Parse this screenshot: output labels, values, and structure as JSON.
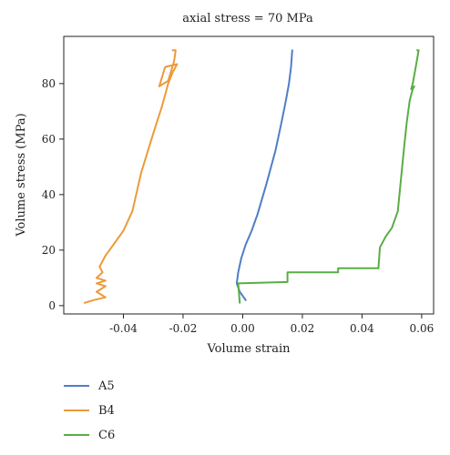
{
  "chart_data": {
    "type": "line",
    "title": "axial stress = 70 MPa",
    "xlabel": "Volume strain",
    "ylabel": "Volume stress (MPa)",
    "xlim": [
      -0.06,
      0.064
    ],
    "ylim": [
      -3,
      97
    ],
    "xticks": [
      -0.04,
      -0.02,
      0.0,
      0.02,
      0.04,
      0.06
    ],
    "xtick_labels": [
      "-0.04",
      "-0.02",
      "0.00",
      "0.02",
      "0.04",
      "0.06"
    ],
    "yticks": [
      0,
      20,
      40,
      60,
      80
    ],
    "ytick_labels": [
      "0",
      "20",
      "40",
      "60",
      "80"
    ],
    "grid": false,
    "legend_position": "below",
    "series": [
      {
        "name": "A5",
        "color": "#4f7ec6",
        "x": [
          0.001,
          -0.001,
          -0.002,
          -0.0015,
          -0.0005,
          0.001,
          0.003,
          0.005,
          0.008,
          0.011,
          0.013,
          0.0145,
          0.0155,
          0.0162,
          0.0166
        ],
        "y": [
          2,
          5,
          8,
          12,
          17,
          22,
          27,
          33,
          44,
          56,
          66,
          74,
          80,
          86,
          92
        ]
      },
      {
        "name": "B4",
        "color": "#ec9a3a",
        "x": [
          -0.053,
          -0.05,
          -0.046,
          -0.049,
          -0.046,
          -0.049,
          -0.046,
          -0.049,
          -0.047,
          -0.048,
          -0.046,
          -0.044,
          -0.04,
          -0.037,
          -0.034,
          -0.03,
          -0.027,
          -0.025,
          -0.0235,
          -0.022,
          -0.026,
          -0.028,
          -0.025,
          -0.023,
          -0.0225,
          -0.0235
        ],
        "y": [
          1,
          2,
          3,
          5,
          7,
          8,
          9,
          10,
          12,
          14,
          18,
          21,
          27,
          34,
          48,
          62,
          72,
          80,
          84,
          87,
          86,
          79,
          81,
          88,
          92,
          92
        ]
      },
      {
        "name": "C6",
        "color": "#5aad45",
        "x": [
          -0.001,
          -0.0015,
          0.015,
          0.015,
          0.032,
          0.032,
          0.0455,
          0.046,
          0.048,
          0.05,
          0.052,
          0.053,
          0.054,
          0.055,
          0.056,
          0.057,
          0.0575,
          0.0565,
          0.057,
          0.058,
          0.059,
          0.0585
        ],
        "y": [
          1,
          8,
          8.5,
          12,
          12,
          13.5,
          13.5,
          21,
          25,
          28,
          34,
          45,
          56,
          66,
          74,
          78,
          79,
          78,
          80,
          86,
          92,
          92
        ]
      }
    ]
  }
}
